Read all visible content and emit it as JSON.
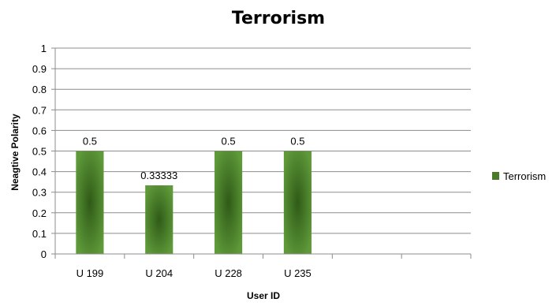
{
  "chart_data": {
    "type": "bar",
    "title": "Terrorism",
    "xlabel": "User ID",
    "ylabel": "Neagtive Polarity",
    "categories": [
      "U 199",
      "U 204",
      "U 228",
      "U 235",
      "",
      ""
    ],
    "series": [
      {
        "name": "Terrorism",
        "values": [
          0.5,
          0.33333,
          0.5,
          0.5,
          null,
          null
        ],
        "data_labels": [
          "0.5",
          "0.33333",
          "0.5",
          "0.5",
          "",
          ""
        ],
        "color": "#4a7a2c"
      }
    ],
    "ylim": [
      0,
      1
    ],
    "yticks": [
      "0",
      "0.1",
      "0.2",
      "0.3",
      "0.4",
      "0.5",
      "0.6",
      "0.7",
      "0.8",
      "0.9",
      "1"
    ],
    "grid": true,
    "legend_position": "right"
  }
}
